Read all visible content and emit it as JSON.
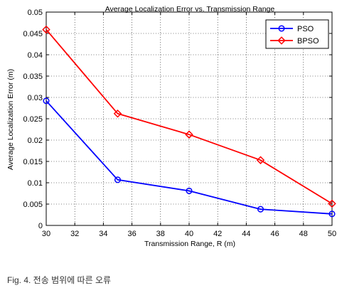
{
  "chart_data": {
    "type": "line",
    "title": "Average Localization Error vs. Transmission Range",
    "xlabel": "Transmission Range, R (m)",
    "ylabel": "Average Localization Error (m)",
    "xlim": [
      30,
      50
    ],
    "ylim": [
      0,
      0.05
    ],
    "x_ticks": [
      "30",
      "32",
      "34",
      "36",
      "38",
      "40",
      "42",
      "44",
      "46",
      "48",
      "50"
    ],
    "y_ticks": [
      "0",
      "0.005",
      "0.01",
      "0.015",
      "0.02",
      "0.025",
      "0.03",
      "0.035",
      "0.04",
      "0.045",
      "0.05"
    ],
    "grid": "dotted",
    "legend_position": "top-right",
    "x": [
      30,
      35,
      40,
      45,
      50
    ],
    "series": [
      {
        "name": "PSO",
        "color": "#0000ff",
        "marker": "circle",
        "values": [
          0.0292,
          0.0107,
          0.0081,
          0.0038,
          0.0027
        ]
      },
      {
        "name": "BPSO",
        "color": "#ff0000",
        "marker": "diamond",
        "values": [
          0.0459,
          0.0262,
          0.0213,
          0.0153,
          0.0051
        ]
      }
    ]
  },
  "caption": "Fig. 4. 전송 범위에 따른 오류"
}
